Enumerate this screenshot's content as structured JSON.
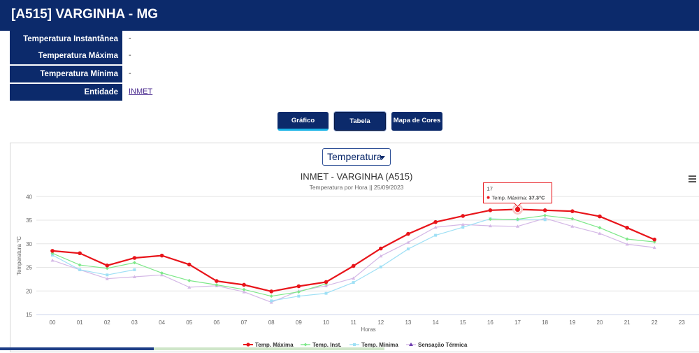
{
  "header": {
    "title": "[A515] VARGINHA - MG"
  },
  "info": [
    {
      "label": "Temperatura Instantânea",
      "value": "-"
    },
    {
      "label": "Temperatura Máxima",
      "value": "-"
    },
    {
      "label": "Temperatura Mínima",
      "value": "-"
    },
    {
      "label": "Entidade",
      "value": "INMET"
    }
  ],
  "buttons": {
    "grafico": "Gráfico",
    "tabela": "Tabela",
    "mapa": "Mapa de Cores"
  },
  "select": {
    "value": "Temperatura"
  },
  "tooltip": {
    "hour": "17",
    "label": "Temp. Máxima: ",
    "value": "37.3°C"
  },
  "colors": {
    "header_bg": "#0c2a6b",
    "max": "#e8141a",
    "inst": "#7de889",
    "min": "#9fe0f5",
    "sens": "#d4b8e6"
  },
  "chart_data": {
    "type": "line",
    "title": "INMET - VARGINHA (A515)",
    "subtitle": "Temperatura por Hora || 25/09/2023",
    "xlabel": "Horas",
    "ylabel": "Temperatura °C",
    "categories": [
      "00",
      "01",
      "02",
      "03",
      "04",
      "05",
      "06",
      "07",
      "08",
      "09",
      "10",
      "11",
      "12",
      "13",
      "14",
      "15",
      "16",
      "17",
      "18",
      "19",
      "20",
      "21",
      "22",
      "23"
    ],
    "yticks": [
      "15",
      "20",
      "25",
      "30",
      "35",
      "40"
    ],
    "ylim": [
      15,
      40
    ],
    "grid": true,
    "legend_position": "bottom",
    "series": [
      {
        "name": "Temp. Máxima",
        "key": "max",
        "values": [
          28.5,
          28.0,
          25.4,
          27.0,
          27.5,
          25.6,
          22.1,
          21.3,
          19.9,
          21.0,
          21.9,
          25.3,
          29.0,
          32.1,
          34.6,
          35.9,
          37.1,
          37.3,
          37.1,
          36.9,
          35.8,
          33.4,
          30.9,
          null
        ]
      },
      {
        "name": "Temp. Inst.",
        "key": "inst",
        "values": [
          28.0,
          25.5,
          24.8,
          26.0,
          23.8,
          22.2,
          21.3,
          20.3,
          18.9,
          19.8,
          21.5,
          null,
          null,
          null,
          null,
          null,
          35.2,
          35.2,
          36.0,
          35.3,
          33.4,
          31.0,
          30.4,
          null
        ]
      },
      {
        "name": "Temp. Mínima",
        "key": "min",
        "values": [
          27.6,
          24.5,
          23.4,
          24.5,
          null,
          null,
          null,
          null,
          17.9,
          18.9,
          19.5,
          21.8,
          25.1,
          28.9,
          31.8,
          33.5,
          35.3,
          35.1,
          35.1,
          null,
          null,
          null,
          null,
          null
        ]
      },
      {
        "name": "Sensação Térmica",
        "key": "sens",
        "values": [
          26.5,
          24.5,
          22.6,
          23.0,
          23.4,
          20.8,
          21.1,
          19.8,
          17.6,
          20.0,
          21.1,
          22.7,
          27.4,
          30.3,
          33.5,
          34.1,
          33.8,
          33.7,
          35.4,
          33.7,
          32.2,
          29.9,
          29.2,
          null
        ]
      }
    ]
  }
}
